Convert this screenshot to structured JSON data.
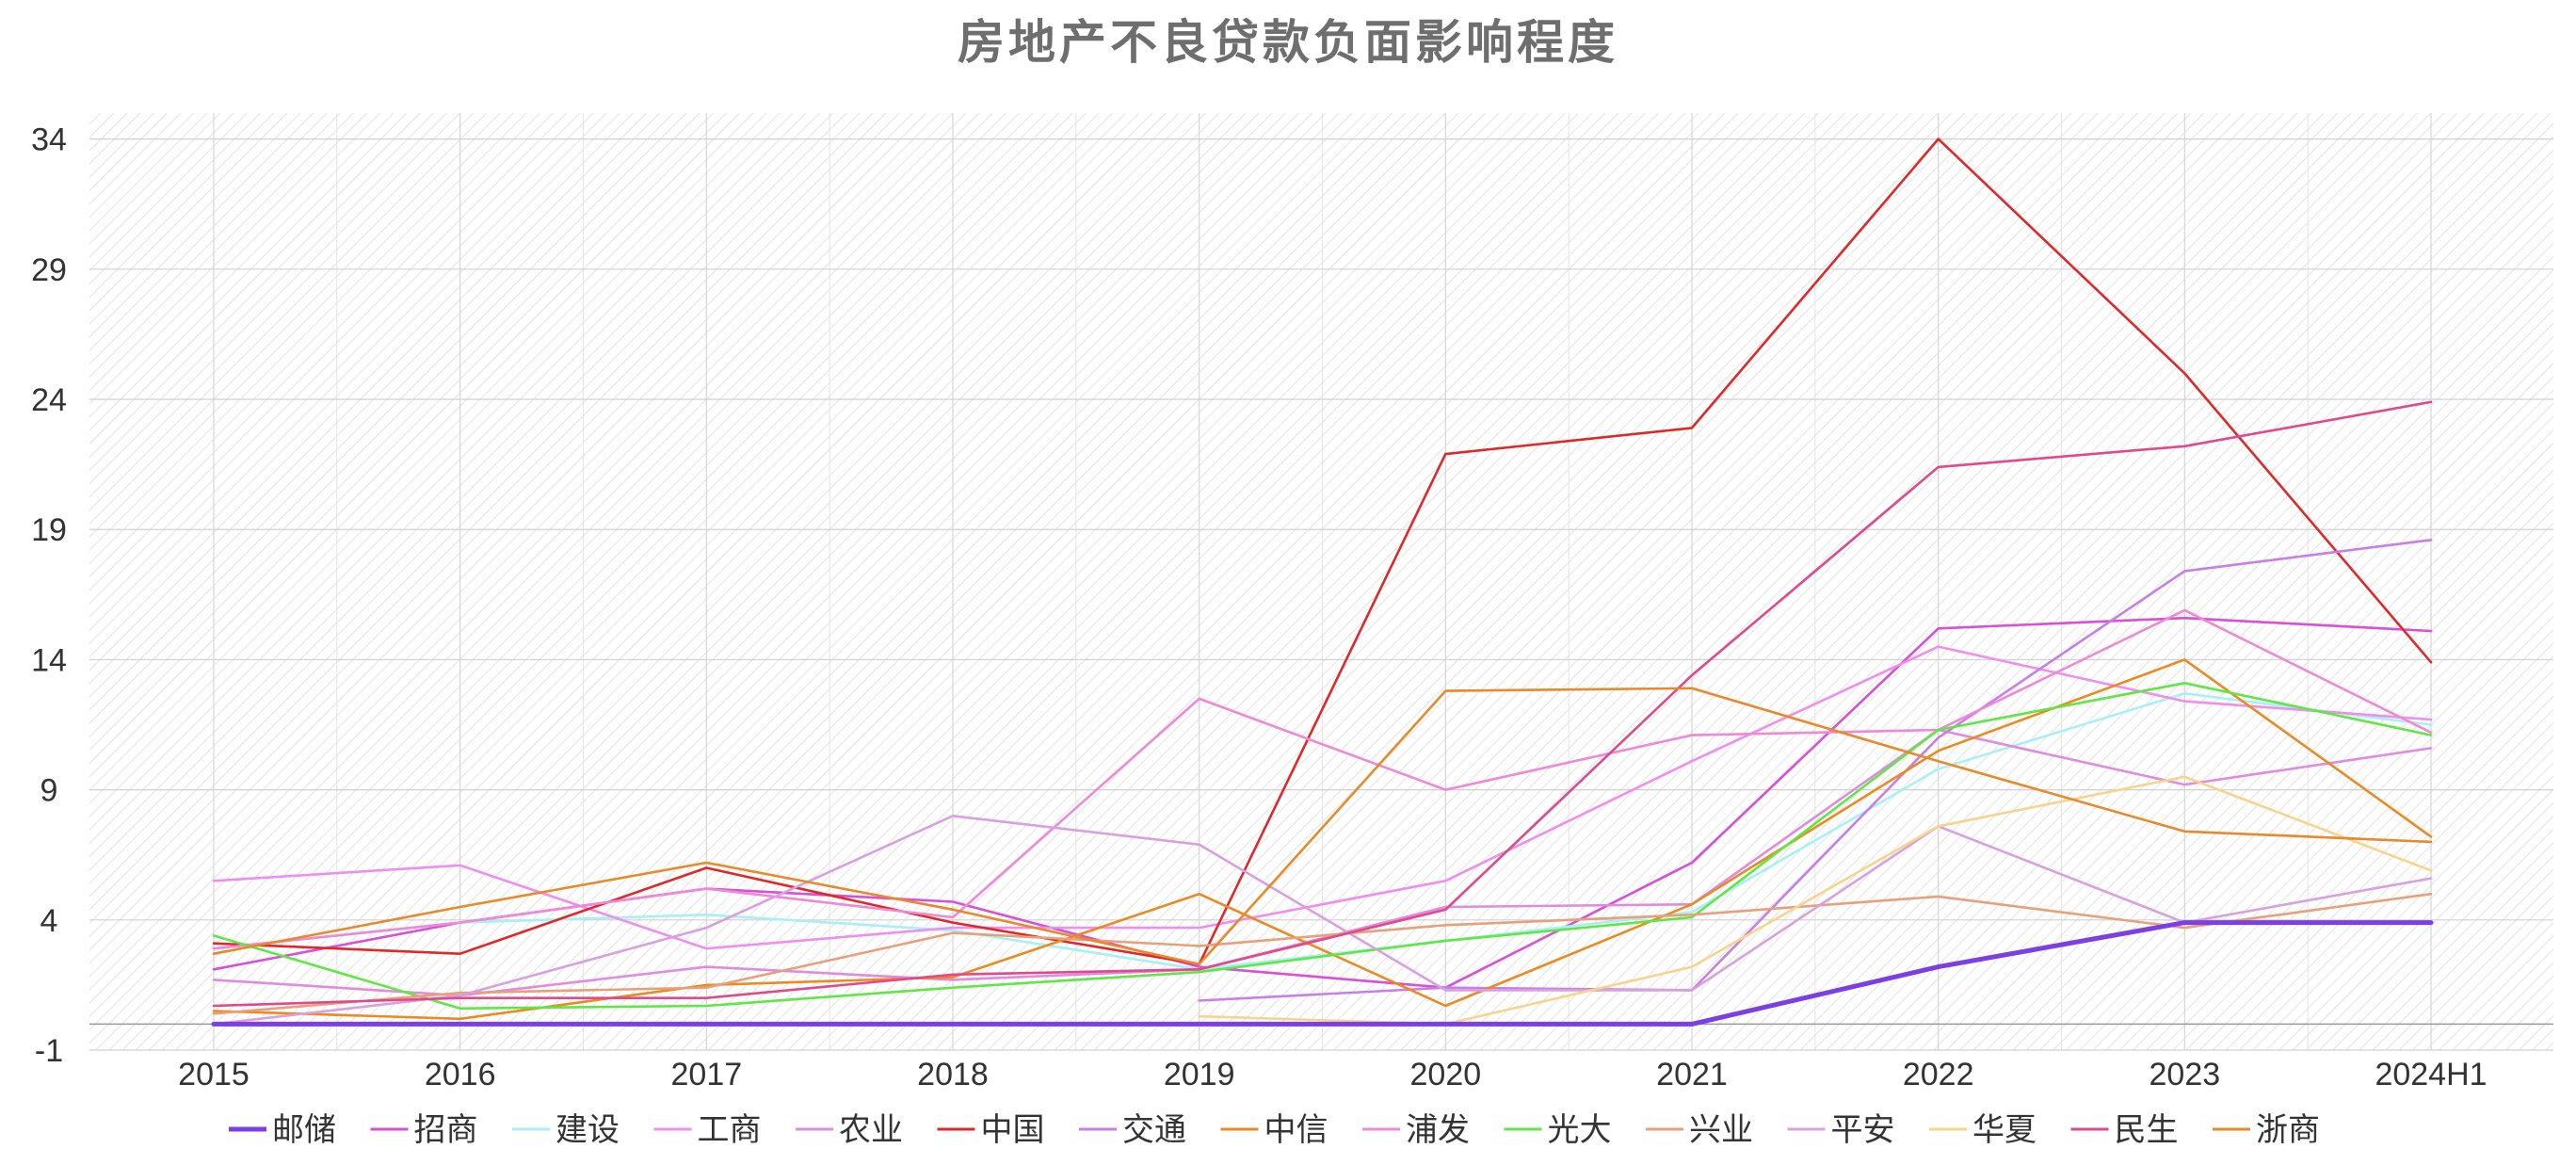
{
  "chart_data": {
    "type": "line",
    "title": "房地产不良贷款负面影响程度",
    "xlabel": "",
    "ylabel": "",
    "categories": [
      "2015",
      "2016",
      "2017",
      "2018",
      "2019",
      "2020",
      "2021",
      "2022",
      "2023",
      "2024H1"
    ],
    "yticks": [
      -1,
      4,
      9,
      14,
      19,
      24,
      29,
      34
    ],
    "ylim": [
      -1,
      35
    ],
    "grid": true,
    "legend_position": "bottom",
    "series": [
      {
        "name": "邮储",
        "color": "#7b3fe4",
        "highlight": true,
        "values": [
          0,
          0,
          0,
          0,
          0,
          0,
          0,
          2.2,
          3.9,
          3.9
        ]
      },
      {
        "name": "招商",
        "color": "#d84fd8",
        "values": [
          2.1,
          3.9,
          5.2,
          4.7,
          2.2,
          1.4,
          6.2,
          15.2,
          15.6,
          15.1
        ]
      },
      {
        "name": "建设",
        "color": "#a8f0f4",
        "values": [
          2.9,
          3.9,
          4.2,
          3.6,
          2.1,
          3.2,
          4.3,
          9.8,
          12.7,
          11.5
        ]
      },
      {
        "name": "工商",
        "color": "#f08ef0",
        "values": [
          5.5,
          6.1,
          2.9,
          3.7,
          3.7,
          5.5,
          10.1,
          14.5,
          12.4,
          11.7
        ]
      },
      {
        "name": "农业",
        "color": "#e08be0",
        "values": [
          1.7,
          1.1,
          2.2,
          1.7,
          2.1,
          4.5,
          4.6,
          11.3,
          9.2,
          10.6
        ]
      },
      {
        "name": "中国",
        "color": "#e02828",
        "values": [
          3.1,
          2.7,
          6.0,
          3.9,
          2.3,
          21.9,
          22.9,
          34.0,
          25.0,
          13.9
        ]
      },
      {
        "name": "交通",
        "color": "#c87ee8",
        "values": [
          null,
          null,
          null,
          null,
          0.9,
          1.4,
          1.3,
          11.0,
          17.4,
          18.6
        ]
      },
      {
        "name": "中信",
        "color": "#ec8a20",
        "values": [
          0.5,
          0.2,
          1.5,
          1.8,
          5.0,
          0.7,
          4.6,
          10.5,
          14.0,
          7.2
        ]
      },
      {
        "name": "浦发",
        "color": "#ef88d6",
        "values": [
          2.9,
          3.9,
          5.2,
          4.1,
          12.5,
          9.0,
          11.1,
          11.3,
          15.9,
          11.2
        ]
      },
      {
        "name": "光大",
        "color": "#5fe845",
        "values": [
          3.4,
          0.6,
          0.7,
          1.4,
          2.0,
          3.2,
          4.1,
          11.3,
          13.1,
          11.1
        ]
      },
      {
        "name": "兴业",
        "color": "#e8a07a",
        "values": [
          0.4,
          1.2,
          1.4,
          3.5,
          3.0,
          3.8,
          4.2,
          4.9,
          3.7,
          5.0
        ]
      },
      {
        "name": "平安",
        "color": "#d9a0e0",
        "values": [
          0,
          1.1,
          3.7,
          8.0,
          6.9,
          1.3,
          1.3,
          7.6,
          3.9,
          5.6
        ]
      },
      {
        "name": "华夏",
        "color": "#f8d48a",
        "values": [
          null,
          null,
          null,
          null,
          0.3,
          0.0,
          2.2,
          7.6,
          9.5,
          5.9
        ]
      },
      {
        "name": "民生",
        "color": "#e04a8a",
        "values": [
          0.7,
          1.0,
          1.0,
          1.9,
          2.1,
          4.4,
          13.4,
          21.4,
          22.2,
          23.9
        ]
      },
      {
        "name": "浙商",
        "color": "#e8892a",
        "values": [
          2.7,
          4.5,
          6.2,
          4.4,
          2.3,
          12.8,
          12.9,
          10.1,
          7.4,
          7.0
        ]
      }
    ]
  }
}
